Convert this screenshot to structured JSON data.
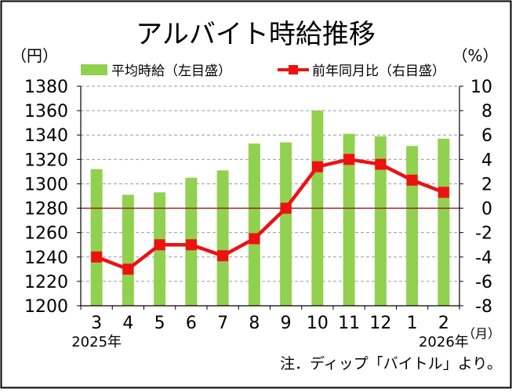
{
  "chart_data": {
    "type": "bar+line",
    "title": "アルバイト時給推移",
    "left_unit": "（円）",
    "right_unit": "（%）",
    "x_unit": "（月）",
    "categories": [
      "3",
      "4",
      "5",
      "6",
      "7",
      "8",
      "9",
      "10",
      "11",
      "12",
      "1",
      "2"
    ],
    "year_labels": [
      {
        "category_index": 0,
        "text": "2025年"
      },
      {
        "category_index": 11,
        "text": "2026年"
      }
    ],
    "series": [
      {
        "name": "平均時給（左目盛）",
        "type": "bar",
        "axis": "left",
        "color": "#92d050",
        "values": [
          1312,
          1291,
          1293,
          1305,
          1311,
          1333,
          1334,
          1360,
          1341,
          1339,
          1331,
          1337
        ]
      },
      {
        "name": "前年同月比（右目盛）",
        "type": "line",
        "axis": "right",
        "color": "#ee1111",
        "values": [
          -4.0,
          -5.0,
          -3.0,
          -3.0,
          -3.9,
          -2.5,
          0.0,
          3.4,
          4.0,
          3.6,
          2.3,
          1.3
        ]
      }
    ],
    "left_axis": {
      "min": 1200,
      "max": 1380,
      "step": 20,
      "ticks": [
        "1200",
        "1220",
        "1240",
        "1260",
        "1280",
        "1300",
        "1320",
        "1340",
        "1360",
        "1380"
      ]
    },
    "right_axis": {
      "min": -8,
      "max": 10,
      "step": 2,
      "ticks": [
        "-8",
        "-6",
        "-4",
        "-2",
        "0",
        "2",
        "4",
        "6",
        "8",
        "10"
      ]
    },
    "reference_line": {
      "left_value": 1280,
      "right_value": 0,
      "color": "#8b1a1a"
    },
    "note": "注．ディップ「バイトル」より。"
  }
}
